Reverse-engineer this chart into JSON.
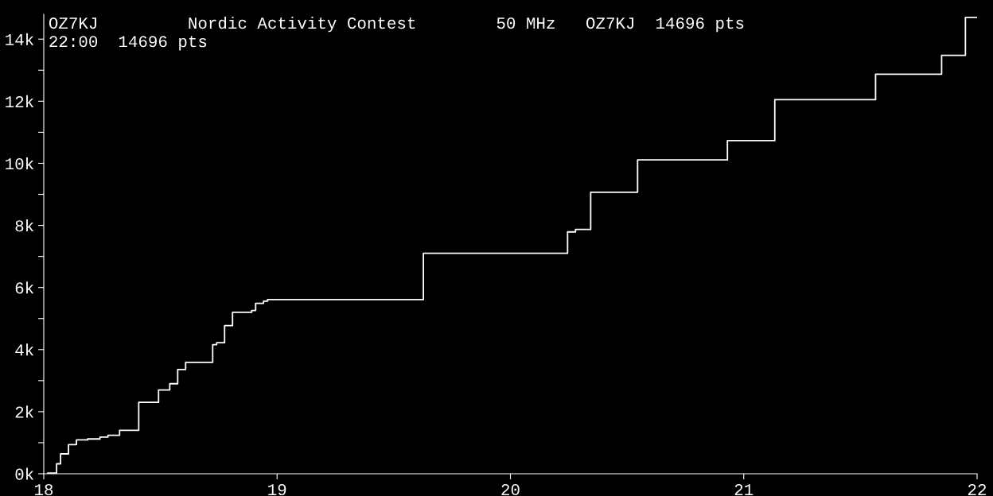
{
  "chart_data": {
    "type": "step",
    "title": "OZ7KJ         Nordic Activity Contest        50 MHz   OZ7KJ  14696 pts",
    "subtitle": "22:00  14696 pts",
    "series": [
      {
        "color": "#ffffff",
        "x": [
          18.017,
          18.055,
          18.072,
          18.106,
          18.14,
          18.188,
          18.241,
          18.275,
          18.325,
          18.407,
          18.492,
          18.54,
          18.574,
          18.608,
          18.724,
          18.741,
          18.775,
          18.809,
          18.891,
          18.908,
          18.942,
          18.959,
          19.627,
          20.245,
          20.279,
          20.344,
          20.545,
          20.93,
          21.133,
          21.565,
          21.848,
          21.95,
          22.0
        ],
        "values": [
          0.02,
          0.32,
          0.64,
          0.94,
          1.09,
          1.12,
          1.18,
          1.24,
          1.4,
          2.3,
          2.7,
          2.9,
          3.36,
          3.59,
          4.16,
          4.22,
          4.77,
          5.2,
          5.26,
          5.49,
          5.56,
          5.61,
          7.1,
          7.79,
          7.87,
          9.07,
          10.11,
          10.73,
          12.05,
          12.87,
          13.48,
          14.7,
          14.7
        ]
      }
    ],
    "xlim": [
      18,
      22
    ],
    "xticks": [
      18,
      19,
      20,
      21,
      22
    ],
    "ylim": [
      0,
      14.8
    ],
    "yticks": [
      {
        "value": 0,
        "label": "0k"
      },
      {
        "value": 1,
        "label": null
      },
      {
        "value": 2,
        "label": "2k"
      },
      {
        "value": 3,
        "label": null
      },
      {
        "value": 4,
        "label": "4k"
      },
      {
        "value": 5,
        "label": null
      },
      {
        "value": 6,
        "label": "6k"
      },
      {
        "value": 7,
        "label": null
      },
      {
        "value": 8,
        "label": "8k"
      },
      {
        "value": 9,
        "label": null
      },
      {
        "value": 10,
        "label": "10k"
      },
      {
        "value": 11,
        "label": null
      },
      {
        "value": 12,
        "label": "12k"
      },
      {
        "value": 13,
        "label": null
      },
      {
        "value": 14,
        "label": "14k"
      }
    ],
    "grid": false,
    "legend": false,
    "marker": "none",
    "line_style": "solid"
  }
}
